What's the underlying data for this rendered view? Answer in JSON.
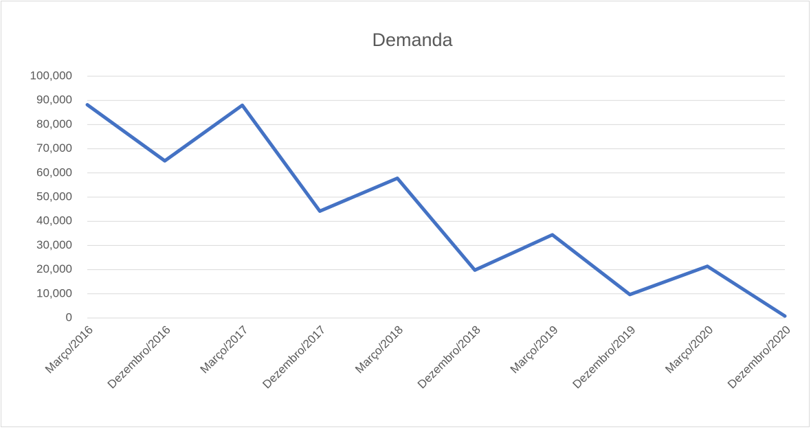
{
  "chart_data": {
    "type": "line",
    "title": "Demanda",
    "categories": [
      "Março/2016",
      "Dezembro/2016",
      "Março/2017",
      "Dezembro/2017",
      "Março/2018",
      "Dezembro/2018",
      "Março/2019",
      "Dezembro/2019",
      "Março/2020",
      "Dezembro/2020"
    ],
    "values": [
      88200,
      65000,
      88000,
      44200,
      57800,
      19800,
      34400,
      9700,
      21400,
      800
    ],
    "color": "#4472c4",
    "ylim": [
      0,
      100000
    ],
    "yticks": [
      0,
      {
        "value": 10000,
        "label": "10,000"
      },
      {
        "value": 20000,
        "label": "20,000"
      },
      {
        "value": 30000,
        "label": "30,000"
      },
      {
        "value": 40000,
        "label": "40,000"
      },
      {
        "value": 50000,
        "label": "50,000"
      },
      {
        "value": 60000,
        "label": "60,000"
      },
      {
        "value": 70000,
        "label": "70,000"
      },
      {
        "value": 80000,
        "label": "80,000"
      },
      {
        "value": 90000,
        "label": "90,000"
      },
      {
        "value": 100000,
        "label": "100,000"
      }
    ],
    "grid": true
  }
}
